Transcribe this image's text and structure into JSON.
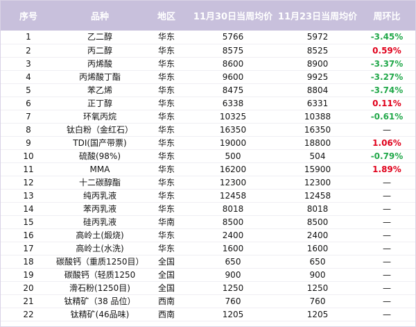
{
  "table": {
    "headers": [
      "序号",
      "品种",
      "地区",
      "11月30日当周均价",
      "11月23日当周均价",
      "周环比"
    ],
    "rows": [
      {
        "no": "1",
        "name": "乙二醇",
        "region": "华东",
        "p30": "5766",
        "p23": "5972",
        "chg": "-3.45%",
        "dir": "down"
      },
      {
        "no": "2",
        "name": "丙二醇",
        "region": "华东",
        "p30": "8575",
        "p23": "8525",
        "chg": "0.59%",
        "dir": "up"
      },
      {
        "no": "3",
        "name": "丙烯酸",
        "region": "华东",
        "p30": "8600",
        "p23": "8900",
        "chg": "-3.37%",
        "dir": "down"
      },
      {
        "no": "4",
        "name": "丙烯酸丁酯",
        "region": "华东",
        "p30": "9600",
        "p23": "9925",
        "chg": "-3.27%",
        "dir": "down"
      },
      {
        "no": "5",
        "name": "苯乙烯",
        "region": "华东",
        "p30": "8475",
        "p23": "8804",
        "chg": "-3.74%",
        "dir": "down"
      },
      {
        "no": "6",
        "name": "正丁醇",
        "region": "华东",
        "p30": "6338",
        "p23": "6331",
        "chg": "0.11%",
        "dir": "up"
      },
      {
        "no": "7",
        "name": "环氧丙烷",
        "region": "华东",
        "p30": "10325",
        "p23": "10388",
        "chg": "-0.61%",
        "dir": "down"
      },
      {
        "no": "8",
        "name": "钛白粉（金红石）",
        "region": "华东",
        "p30": "16350",
        "p23": "16350",
        "chg": "—",
        "dir": "flat"
      },
      {
        "no": "9",
        "name": "TDI(国产带票)",
        "region": "华东",
        "p30": "19000",
        "p23": "18800",
        "chg": "1.06%",
        "dir": "up"
      },
      {
        "no": "10",
        "name": "硫酸(98%)",
        "region": "华东",
        "p30": "500",
        "p23": "504",
        "chg": "-0.79%",
        "dir": "down"
      },
      {
        "no": "11",
        "name": "MMA",
        "region": "华东",
        "p30": "16200",
        "p23": "15900",
        "chg": "1.89%",
        "dir": "up"
      },
      {
        "no": "12",
        "name": "十二碳醇酯",
        "region": "华东",
        "p30": "12300",
        "p23": "12300",
        "chg": "—",
        "dir": "flat"
      },
      {
        "no": "13",
        "name": "纯丙乳液",
        "region": "华东",
        "p30": "12458",
        "p23": "12458",
        "chg": "—",
        "dir": "flat"
      },
      {
        "no": "14",
        "name": "苯丙乳液",
        "region": "华东",
        "p30": "8018",
        "p23": "8018",
        "chg": "—",
        "dir": "flat"
      },
      {
        "no": "15",
        "name": "硅丙乳液",
        "region": "华南",
        "p30": "8500",
        "p23": "8500",
        "chg": "—",
        "dir": "flat"
      },
      {
        "no": "16",
        "name": "高岭土(煅烧)",
        "region": "华东",
        "p30": "2400",
        "p23": "2400",
        "chg": "—",
        "dir": "flat"
      },
      {
        "no": "17",
        "name": "高岭土(水洗)",
        "region": "华东",
        "p30": "1600",
        "p23": "1600",
        "chg": "—",
        "dir": "flat"
      },
      {
        "no": "18",
        "name": "碳酸钙（重质1250目）",
        "region": "全国",
        "p30": "650",
        "p23": "650",
        "chg": "—",
        "dir": "flat"
      },
      {
        "no": "19",
        "name": "碳酸钙（轻质1250",
        "region": "全国",
        "p30": "900",
        "p23": "900",
        "chg": "—",
        "dir": "flat"
      },
      {
        "no": "20",
        "name": "滑石粉(1250目)",
        "region": "全国",
        "p30": "1250",
        "p23": "1250",
        "chg": "—",
        "dir": "flat"
      },
      {
        "no": "21",
        "name": "钛精矿（38 品位）",
        "region": "西南",
        "p30": "760",
        "p23": "760",
        "chg": "—",
        "dir": "flat"
      },
      {
        "no": "22",
        "name": "钛精矿(46品味)",
        "region": "西南",
        "p30": "1205",
        "p23": "1205",
        "chg": "—",
        "dir": "flat"
      }
    ]
  },
  "colors": {
    "header_bg": "#c8c0dc",
    "up": "#e0001b",
    "down": "#22a84a",
    "flat": "#111111"
  }
}
